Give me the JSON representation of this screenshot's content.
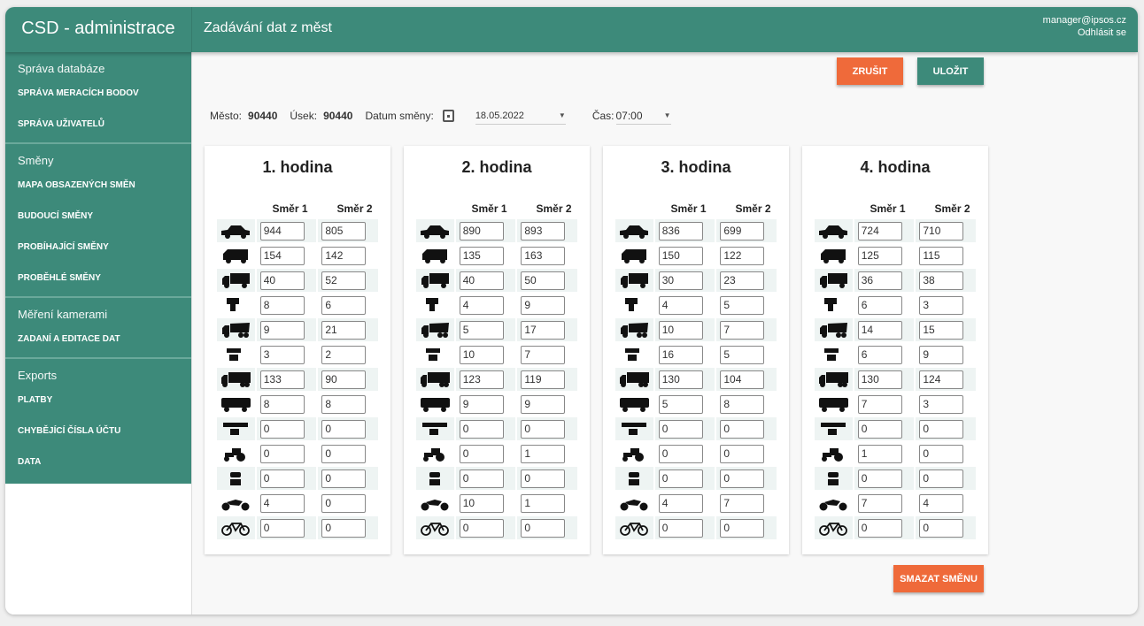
{
  "app": {
    "brand": "CSD - administrace",
    "page_title": "Zadávání dat z měst",
    "user_email": "manager@ipsos.cz",
    "logout": "Odhlásit se"
  },
  "sidebar": {
    "groups": [
      {
        "heading": "Správa databáze",
        "items": [
          "SPRÁVA MERACÍCH BODOV",
          "SPRÁVA UŽIVATELŮ"
        ]
      },
      {
        "heading": "Směny",
        "items": [
          "MAPA OBSAZENÝCH SMĚN",
          "BUDOUCÍ SMĚNY",
          "PROBÍHAJÍCÍ SMĚNY",
          "PROBĚHLÉ SMĚNY"
        ]
      },
      {
        "heading": "Měření kamerami",
        "items": [
          "ZADANÍ A EDITACE DAT"
        ]
      },
      {
        "heading": "Exports",
        "items": [
          "PLATBY",
          "CHYBĚJÍCÍ ČÍSLA ÚČTU",
          "DATA"
        ]
      }
    ]
  },
  "toolbar": {
    "cancel": "ZRUŠIT",
    "save": "ULOŽIT",
    "delete_shift": "SMAZAT SMĚNU"
  },
  "filters": {
    "city_label": "Město:",
    "city": "90440",
    "section_label": "Úsek:",
    "section": "90440",
    "date_label": "Datum směny:",
    "date": "18.05.2022",
    "time_label": "Čas:",
    "time": "07:00"
  },
  "columns": [
    "Směr 1",
    "Směr 2"
  ],
  "vehicle_icons": [
    "car-icon",
    "van-icon",
    "truck-icon",
    "truck-trailer-icon",
    "dump-truck-icon",
    "semi-trailer-icon",
    "articulated-truck-icon",
    "bus-icon",
    "articulated-bus-icon",
    "tractor-icon",
    "tram-icon",
    "motorcycle-icon",
    "bicycle-icon"
  ],
  "colors": {
    "primary": "#3d8a7a",
    "accent": "#ef6a3a"
  },
  "hours": [
    {
      "title": "1. hodina",
      "rows": [
        [
          "944",
          "805"
        ],
        [
          "154",
          "142"
        ],
        [
          "40",
          "52"
        ],
        [
          "8",
          "6"
        ],
        [
          "9",
          "21"
        ],
        [
          "3",
          "2"
        ],
        [
          "133",
          "90"
        ],
        [
          "8",
          "8"
        ],
        [
          "0",
          "0"
        ],
        [
          "0",
          "0"
        ],
        [
          "0",
          "0"
        ],
        [
          "4",
          "0"
        ],
        [
          "0",
          "0"
        ]
      ]
    },
    {
      "title": "2. hodina",
      "rows": [
        [
          "890",
          "893"
        ],
        [
          "135",
          "163"
        ],
        [
          "40",
          "50"
        ],
        [
          "4",
          "9"
        ],
        [
          "5",
          "17"
        ],
        [
          "10",
          "7"
        ],
        [
          "123",
          "119"
        ],
        [
          "9",
          "9"
        ],
        [
          "0",
          "0"
        ],
        [
          "0",
          "1"
        ],
        [
          "0",
          "0"
        ],
        [
          "10",
          "1"
        ],
        [
          "0",
          "0"
        ]
      ]
    },
    {
      "title": "3. hodina",
      "rows": [
        [
          "836",
          "699"
        ],
        [
          "150",
          "122"
        ],
        [
          "30",
          "23"
        ],
        [
          "4",
          "5"
        ],
        [
          "10",
          "7"
        ],
        [
          "16",
          "5"
        ],
        [
          "130",
          "104"
        ],
        [
          "5",
          "8"
        ],
        [
          "0",
          "0"
        ],
        [
          "0",
          "0"
        ],
        [
          "0",
          "0"
        ],
        [
          "4",
          "7"
        ],
        [
          "0",
          "0"
        ]
      ]
    },
    {
      "title": "4. hodina",
      "rows": [
        [
          "724",
          "710"
        ],
        [
          "125",
          "115"
        ],
        [
          "36",
          "38"
        ],
        [
          "6",
          "3"
        ],
        [
          "14",
          "15"
        ],
        [
          "6",
          "9"
        ],
        [
          "130",
          "124"
        ],
        [
          "7",
          "3"
        ],
        [
          "0",
          "0"
        ],
        [
          "1",
          "0"
        ],
        [
          "0",
          "0"
        ],
        [
          "7",
          "4"
        ],
        [
          "0",
          "0"
        ]
      ]
    }
  ]
}
